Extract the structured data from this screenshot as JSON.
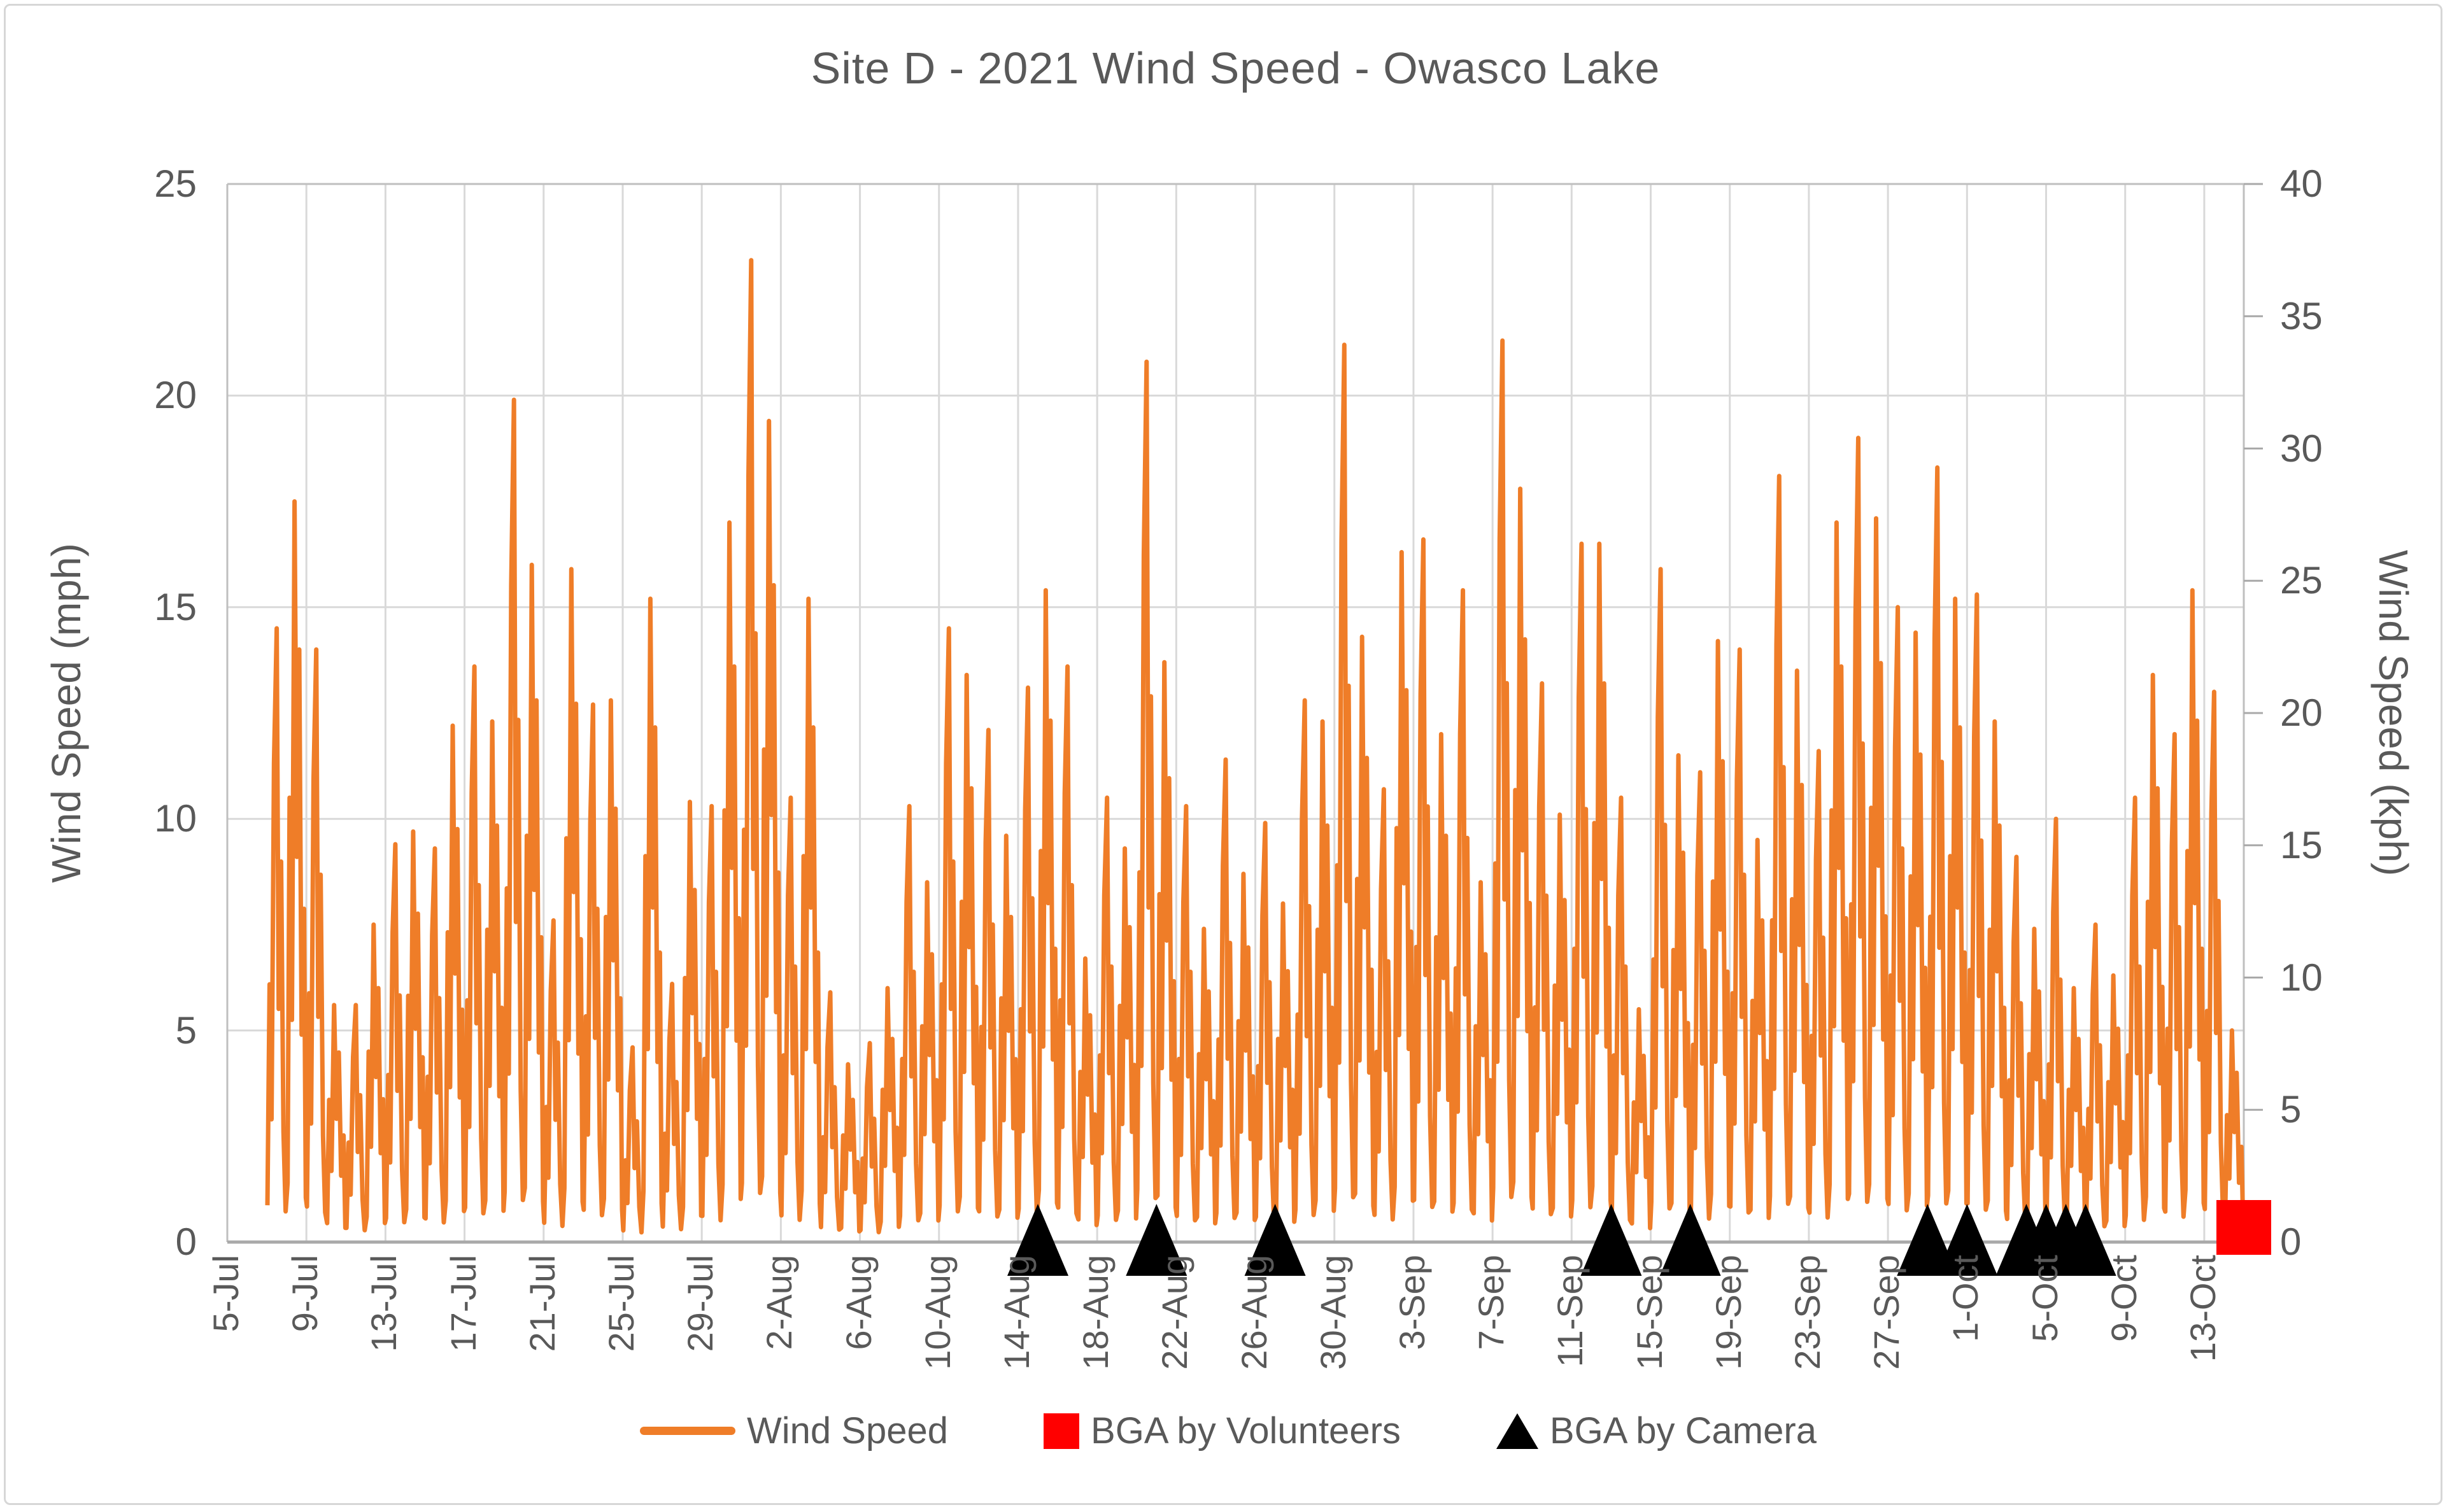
{
  "chart_data": {
    "type": "line",
    "title": "Site D - 2021 Wind Speed - Owasco Lake",
    "left_axis": {
      "label": "Wind Speed (mph)",
      "min": 0,
      "max": 25,
      "ticks": [
        0,
        5,
        10,
        15,
        20,
        25
      ]
    },
    "right_axis": {
      "label": "Wind Speed (kph)",
      "min": 0,
      "max": 40,
      "ticks": [
        0,
        5,
        10,
        15,
        20,
        25,
        30,
        35,
        40
      ]
    },
    "x_axis": {
      "tick_labels": [
        "5-Jul",
        "9-Jul",
        "13-Jul",
        "17-Jul",
        "21-Jul",
        "25-Jul",
        "29-Jul",
        "2-Aug",
        "6-Aug",
        "10-Aug",
        "14-Aug",
        "18-Aug",
        "22-Aug",
        "26-Aug",
        "30-Aug",
        "3-Sep",
        "7-Sep",
        "11-Sep",
        "15-Sep",
        "19-Sep",
        "23-Sep",
        "27-Sep",
        "1-Oct",
        "5-Oct",
        "9-Oct",
        "13-Oct"
      ],
      "tick_interval_days": 4,
      "domain_days": [
        0,
        102
      ]
    },
    "grid": {
      "vertical": true,
      "horizontal": true
    },
    "legend_position": "bottom",
    "colors": {
      "wind_speed": "#EF7D28",
      "volunteers": "#FF0000",
      "camera": "#000000",
      "gridline": "#D9D9D9",
      "frame": "#BFBFBF",
      "baseline": "#A9A9A9",
      "text": "#595959"
    },
    "series": [
      {
        "name": "Wind Speed",
        "units": "mph",
        "start_day": 2,
        "start_date": "7-Jul",
        "daily_max_mph": [
          14.5,
          17.5,
          14.0,
          5.6,
          5.6,
          7.5,
          9.4,
          9.7,
          9.3,
          12.2,
          13.6,
          12.3,
          19.9,
          16.0,
          7.6,
          15.9,
          12.7,
          12.8,
          4.6,
          15.2,
          6.1,
          10.4,
          10.3,
          17.0,
          23.2,
          19.4,
          10.5,
          15.2,
          5.9,
          4.2,
          4.7,
          6.0,
          10.3,
          8.5,
          14.5,
          13.4,
          12.1,
          9.6,
          13.1,
          15.4,
          13.6,
          6.7,
          10.5,
          9.3,
          20.8,
          13.7,
          10.3,
          7.4,
          11.4,
          8.7,
          9.9,
          8.0,
          12.8,
          12.3,
          21.2,
          14.3,
          10.7,
          16.3,
          16.6,
          12.0,
          15.4,
          8.5,
          21.3,
          17.8,
          13.2,
          10.1,
          16.5,
          16.5,
          10.5,
          5.5,
          15.9,
          11.5,
          11.1,
          14.2,
          14.0,
          9.5,
          18.1,
          13.5,
          11.6,
          17.0,
          19.0,
          17.1,
          15.0,
          14.4,
          18.3,
          15.2,
          15.3,
          12.3,
          9.1,
          7.4,
          10.0,
          6.0,
          7.5,
          6.3,
          10.5,
          13.4,
          12.0,
          15.4,
          13.0,
          5.0
        ]
      }
    ],
    "markers": {
      "volunteers": {
        "name": "BGA by Volunteers",
        "shape": "square",
        "points": [
          {
            "date": "14-Oct",
            "day": 102,
            "value": 0
          }
        ]
      },
      "camera": {
        "name": "BGA by Camera",
        "shape": "triangle",
        "points": [
          {
            "date": "15-Aug",
            "day": 41,
            "value": 0
          },
          {
            "date": "21-Aug",
            "day": 47,
            "value": 0
          },
          {
            "date": "27-Aug",
            "day": 53,
            "value": 0
          },
          {
            "date": "13-Sep",
            "day": 70,
            "value": 0
          },
          {
            "date": "17-Sep",
            "day": 74,
            "value": 0
          },
          {
            "date": "29-Sep",
            "day": 86,
            "value": 0
          },
          {
            "date": "1-Oct",
            "day": 88,
            "value": 0
          },
          {
            "date": "4-Oct",
            "day": 91,
            "value": 0
          },
          {
            "date": "5-Oct",
            "day": 92,
            "value": 0
          },
          {
            "date": "6-Oct",
            "day": 93,
            "value": 0
          },
          {
            "date": "7-Oct",
            "day": 94,
            "value": 0
          }
        ]
      }
    }
  }
}
